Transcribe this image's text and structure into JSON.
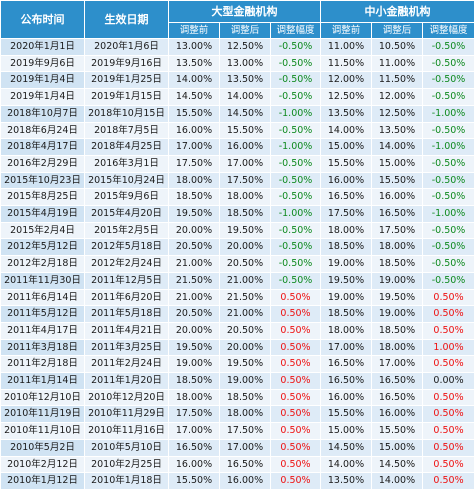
{
  "headers": {
    "publish_time": "公布时间",
    "effective_date": "生效日期",
    "large_institutions": "大型金融机构",
    "small_institutions": "中小金融机构",
    "before": "调整前",
    "after": "调整后",
    "change": "调整幅度"
  },
  "rows": [
    {
      "pub": "2020年1月1日",
      "eff": "2020年1月6日",
      "lb": "13.00%",
      "la": "12.50%",
      "lc": "-0.50%",
      "sb": "11.00%",
      "sa": "10.50%",
      "sc": "-0.50%"
    },
    {
      "pub": "2019年9月6日",
      "eff": "2019年9月16日",
      "lb": "13.50%",
      "la": "13.00%",
      "lc": "-0.50%",
      "sb": "11.50%",
      "sa": "11.00%",
      "sc": "-0.50%"
    },
    {
      "pub": "2019年1月4日",
      "eff": "2019年1月25日",
      "lb": "14.00%",
      "la": "13.50%",
      "lc": "-0.50%",
      "sb": "12.00%",
      "sa": "11.50%",
      "sc": "-0.50%"
    },
    {
      "pub": "2019年1月4日",
      "eff": "2019年1月15日",
      "lb": "14.50%",
      "la": "14.00%",
      "lc": "-0.50%",
      "sb": "12.50%",
      "sa": "12.00%",
      "sc": "-0.50%"
    },
    {
      "pub": "2018年10月7日",
      "eff": "2018年10月15日",
      "lb": "15.50%",
      "la": "14.50%",
      "lc": "-1.00%",
      "sb": "13.50%",
      "sa": "12.50%",
      "sc": "-1.00%"
    },
    {
      "pub": "2018年6月24日",
      "eff": "2018年7月5日",
      "lb": "16.00%",
      "la": "15.50%",
      "lc": "-0.50%",
      "sb": "14.00%",
      "sa": "13.50%",
      "sc": "-0.50%"
    },
    {
      "pub": "2018年4月17日",
      "eff": "2018年4月25日",
      "lb": "17.00%",
      "la": "16.00%",
      "lc": "-1.00%",
      "sb": "15.00%",
      "sa": "14.00%",
      "sc": "-1.00%"
    },
    {
      "pub": "2016年2月29日",
      "eff": "2016年3月1日",
      "lb": "17.50%",
      "la": "17.00%",
      "lc": "-0.50%",
      "sb": "15.50%",
      "sa": "15.00%",
      "sc": "-0.50%"
    },
    {
      "pub": "2015年10月23日",
      "eff": "2015年10月24日",
      "lb": "18.00%",
      "la": "17.50%",
      "lc": "-0.50%",
      "sb": "16.00%",
      "sa": "15.50%",
      "sc": "-0.50%"
    },
    {
      "pub": "2015年8月25日",
      "eff": "2015年9月6日",
      "lb": "18.50%",
      "la": "18.00%",
      "lc": "-0.50%",
      "sb": "16.50%",
      "sa": "16.00%",
      "sc": "-0.50%"
    },
    {
      "pub": "2015年4月19日",
      "eff": "2015年4月20日",
      "lb": "19.50%",
      "la": "18.50%",
      "lc": "-1.00%",
      "sb": "17.50%",
      "sa": "16.50%",
      "sc": "-1.00%"
    },
    {
      "pub": "2015年2月4日",
      "eff": "2015年2月5日",
      "lb": "20.00%",
      "la": "19.50%",
      "lc": "-0.50%",
      "sb": "18.00%",
      "sa": "17.50%",
      "sc": "-0.50%"
    },
    {
      "pub": "2012年5月12日",
      "eff": "2012年5月18日",
      "lb": "20.50%",
      "la": "20.00%",
      "lc": "-0.50%",
      "sb": "18.50%",
      "sa": "18.00%",
      "sc": "-0.50%"
    },
    {
      "pub": "2012年2月18日",
      "eff": "2012年2月24日",
      "lb": "21.00%",
      "la": "20.50%",
      "lc": "-0.50%",
      "sb": "19.00%",
      "sa": "18.50%",
      "sc": "-0.50%"
    },
    {
      "pub": "2011年11月30日",
      "eff": "2011年12月5日",
      "lb": "21.50%",
      "la": "21.00%",
      "lc": "-0.50%",
      "sb": "19.50%",
      "sa": "19.00%",
      "sc": "-0.50%"
    },
    {
      "pub": "2011年6月14日",
      "eff": "2011年6月20日",
      "lb": "21.00%",
      "la": "21.50%",
      "lc": "0.50%",
      "sb": "19.00%",
      "sa": "19.50%",
      "sc": "0.50%"
    },
    {
      "pub": "2011年5月12日",
      "eff": "2011年5月18日",
      "lb": "20.50%",
      "la": "21.00%",
      "lc": "0.50%",
      "sb": "18.50%",
      "sa": "19.00%",
      "sc": "0.50%"
    },
    {
      "pub": "2011年4月17日",
      "eff": "2011年4月21日",
      "lb": "20.00%",
      "la": "20.50%",
      "lc": "0.50%",
      "sb": "18.00%",
      "sa": "18.50%",
      "sc": "0.50%"
    },
    {
      "pub": "2011年3月18日",
      "eff": "2011年3月25日",
      "lb": "19.50%",
      "la": "20.00%",
      "lc": "0.50%",
      "sb": "17.00%",
      "sa": "18.00%",
      "sc": "1.00%"
    },
    {
      "pub": "2011年2月18日",
      "eff": "2011年2月24日",
      "lb": "19.00%",
      "la": "19.50%",
      "lc": "0.50%",
      "sb": "16.50%",
      "sa": "17.00%",
      "sc": "0.50%"
    },
    {
      "pub": "2011年1月14日",
      "eff": "2011年1月20日",
      "lb": "18.50%",
      "la": "19.00%",
      "lc": "0.50%",
      "sb": "16.50%",
      "sa": "16.50%",
      "sc": "0.00%"
    },
    {
      "pub": "2010年12月10日",
      "eff": "2010年12月20日",
      "lb": "18.00%",
      "la": "18.50%",
      "lc": "0.50%",
      "sb": "16.00%",
      "sa": "16.50%",
      "sc": "0.50%"
    },
    {
      "pub": "2010年11月19日",
      "eff": "2010年11月29日",
      "lb": "17.50%",
      "la": "18.00%",
      "lc": "0.50%",
      "sb": "15.50%",
      "sa": "16.00%",
      "sc": "0.50%"
    },
    {
      "pub": "2010年11月10日",
      "eff": "2010年11月16日",
      "lb": "17.00%",
      "la": "17.50%",
      "lc": "0.50%",
      "sb": "15.00%",
      "sa": "15.50%",
      "sc": "0.50%"
    },
    {
      "pub": "2010年5月2日",
      "eff": "2010年5月10日",
      "lb": "16.50%",
      "la": "17.00%",
      "lc": "0.50%",
      "sb": "14.50%",
      "sa": "15.00%",
      "sc": "0.50%"
    },
    {
      "pub": "2010年2月12日",
      "eff": "2010年2月25日",
      "lb": "16.00%",
      "la": "16.50%",
      "lc": "0.50%",
      "sb": "14.00%",
      "sa": "14.50%",
      "sc": "0.50%"
    },
    {
      "pub": "2010年1月12日",
      "eff": "2010年1月18日",
      "lb": "15.50%",
      "la": "16.00%",
      "lc": "0.50%",
      "sb": "13.50%",
      "sa": "14.00%",
      "sc": "0.50%"
    }
  ]
}
